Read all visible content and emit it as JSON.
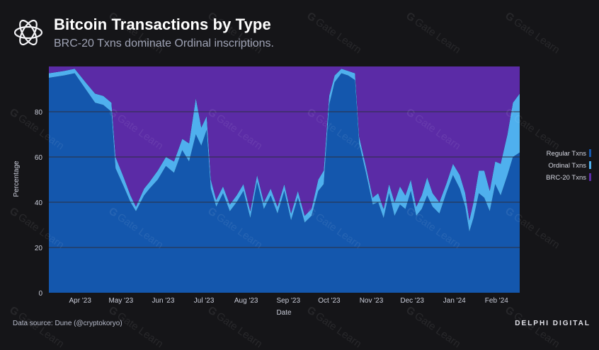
{
  "header": {
    "title": "Bitcoin Transactions by Type",
    "subtitle": "BRC-20 Txns dominate Ordinal inscriptions."
  },
  "footer": {
    "source": "Data source: Dune (@cryptokoryo)",
    "brand": "DELPHI DIGITAL"
  },
  "watermark": {
    "text": "Gate Learn"
  },
  "colors": {
    "background": "#151518",
    "regular": "#1457ad",
    "ordinal": "#4fb0ee",
    "brc20": "#5b2ba6",
    "grid": "#2b2f40"
  },
  "chart_data": {
    "type": "area",
    "stacked": true,
    "xlabel": "Date",
    "ylabel": "Percentage",
    "ylim": [
      0,
      100
    ],
    "yticks": [
      0,
      20,
      40,
      60,
      80
    ],
    "xlim": [
      "2023-03-09",
      "2024-02-18"
    ],
    "xticks": [
      {
        "date": "2023-04-01",
        "label": "Apr '23"
      },
      {
        "date": "2023-05-01",
        "label": "May '23"
      },
      {
        "date": "2023-06-01",
        "label": "Jun '23"
      },
      {
        "date": "2023-07-01",
        "label": "Jul '23"
      },
      {
        "date": "2023-08-01",
        "label": "Aug '23"
      },
      {
        "date": "2023-09-01",
        "label": "Sep '23"
      },
      {
        "date": "2023-10-01",
        "label": "Oct '23"
      },
      {
        "date": "2023-11-01",
        "label": "Nov '23"
      },
      {
        "date": "2023-12-01",
        "label": "Dec '23"
      },
      {
        "date": "2024-01-01",
        "label": "Jan '24"
      },
      {
        "date": "2024-02-01",
        "label": "Feb '24"
      }
    ],
    "grid": true,
    "legend_position": "right",
    "series": [
      {
        "name": "Regular Txns",
        "color": "#1457ad",
        "points": [
          [
            "2023-03-09",
            95
          ],
          [
            "2023-03-20",
            96
          ],
          [
            "2023-03-28",
            97
          ],
          [
            "2023-04-05",
            90
          ],
          [
            "2023-04-12",
            84
          ],
          [
            "2023-04-18",
            83
          ],
          [
            "2023-04-24",
            80
          ],
          [
            "2023-04-27",
            55
          ],
          [
            "2023-05-03",
            47
          ],
          [
            "2023-05-08",
            40
          ],
          [
            "2023-05-12",
            36
          ],
          [
            "2023-05-18",
            43
          ],
          [
            "2023-05-22",
            46
          ],
          [
            "2023-05-28",
            50
          ],
          [
            "2023-06-03",
            56
          ],
          [
            "2023-06-09",
            53
          ],
          [
            "2023-06-15",
            63
          ],
          [
            "2023-06-20",
            58
          ],
          [
            "2023-06-25",
            70
          ],
          [
            "2023-06-29",
            65
          ],
          [
            "2023-07-03",
            72
          ],
          [
            "2023-07-06",
            46
          ],
          [
            "2023-07-10",
            38
          ],
          [
            "2023-07-15",
            44
          ],
          [
            "2023-07-20",
            36
          ],
          [
            "2023-07-25",
            40
          ],
          [
            "2023-07-30",
            45
          ],
          [
            "2023-08-04",
            33
          ],
          [
            "2023-08-09",
            49
          ],
          [
            "2023-08-14",
            37
          ],
          [
            "2023-08-19",
            43
          ],
          [
            "2023-08-24",
            35
          ],
          [
            "2023-08-29",
            45
          ],
          [
            "2023-09-03",
            32
          ],
          [
            "2023-09-08",
            42
          ],
          [
            "2023-09-13",
            31
          ],
          [
            "2023-09-18",
            34
          ],
          [
            "2023-09-23",
            45
          ],
          [
            "2023-09-27",
            48
          ],
          [
            "2023-10-01",
            83
          ],
          [
            "2023-10-05",
            93
          ],
          [
            "2023-10-10",
            97
          ],
          [
            "2023-10-15",
            96
          ],
          [
            "2023-10-20",
            94
          ],
          [
            "2023-10-23",
            66
          ],
          [
            "2023-10-28",
            53
          ],
          [
            "2023-11-02",
            39
          ],
          [
            "2023-11-06",
            40
          ],
          [
            "2023-11-10",
            33
          ],
          [
            "2023-11-14",
            44
          ],
          [
            "2023-11-18",
            34
          ],
          [
            "2023-11-22",
            39
          ],
          [
            "2023-11-26",
            37
          ],
          [
            "2023-11-30",
            45
          ],
          [
            "2023-12-04",
            34
          ],
          [
            "2023-12-08",
            37
          ],
          [
            "2023-12-12",
            43
          ],
          [
            "2023-12-16",
            38
          ],
          [
            "2023-12-21",
            35
          ],
          [
            "2023-12-26",
            44
          ],
          [
            "2023-12-31",
            52
          ],
          [
            "2024-01-05",
            46
          ],
          [
            "2024-01-09",
            38
          ],
          [
            "2024-01-12",
            27
          ],
          [
            "2024-01-15",
            33
          ],
          [
            "2024-01-19",
            44
          ],
          [
            "2024-01-23",
            42
          ],
          [
            "2024-01-27",
            36
          ],
          [
            "2024-01-31",
            48
          ],
          [
            "2024-02-04",
            43
          ],
          [
            "2024-02-09",
            52
          ],
          [
            "2024-02-13",
            60
          ],
          [
            "2024-02-18",
            62
          ]
        ]
      },
      {
        "name": "Ordinal Txns",
        "color": "#4fb0ee",
        "points": [
          [
            "2023-03-09",
            2
          ],
          [
            "2023-03-20",
            2
          ],
          [
            "2023-03-28",
            2
          ],
          [
            "2023-04-05",
            3
          ],
          [
            "2023-04-12",
            4
          ],
          [
            "2023-04-18",
            4
          ],
          [
            "2023-04-24",
            4
          ],
          [
            "2023-04-27",
            5
          ],
          [
            "2023-05-03",
            4
          ],
          [
            "2023-05-08",
            3
          ],
          [
            "2023-05-12",
            2
          ],
          [
            "2023-05-18",
            3
          ],
          [
            "2023-05-22",
            3
          ],
          [
            "2023-05-28",
            4
          ],
          [
            "2023-06-03",
            4
          ],
          [
            "2023-06-09",
            5
          ],
          [
            "2023-06-15",
            5
          ],
          [
            "2023-06-20",
            8
          ],
          [
            "2023-06-25",
            16
          ],
          [
            "2023-06-29",
            8
          ],
          [
            "2023-07-03",
            6
          ],
          [
            "2023-07-06",
            4
          ],
          [
            "2023-07-10",
            3
          ],
          [
            "2023-07-15",
            3
          ],
          [
            "2023-07-20",
            3
          ],
          [
            "2023-07-25",
            3
          ],
          [
            "2023-07-30",
            3
          ],
          [
            "2023-08-04",
            3
          ],
          [
            "2023-08-09",
            3
          ],
          [
            "2023-08-14",
            3
          ],
          [
            "2023-08-19",
            3
          ],
          [
            "2023-08-24",
            3
          ],
          [
            "2023-08-29",
            3
          ],
          [
            "2023-09-03",
            3
          ],
          [
            "2023-09-08",
            3
          ],
          [
            "2023-09-13",
            3
          ],
          [
            "2023-09-18",
            3
          ],
          [
            "2023-09-23",
            5
          ],
          [
            "2023-09-27",
            6
          ],
          [
            "2023-10-01",
            4
          ],
          [
            "2023-10-05",
            3
          ],
          [
            "2023-10-10",
            2
          ],
          [
            "2023-10-15",
            2
          ],
          [
            "2023-10-20",
            3
          ],
          [
            "2023-10-23",
            3
          ],
          [
            "2023-10-28",
            3
          ],
          [
            "2023-11-02",
            3
          ],
          [
            "2023-11-06",
            4
          ],
          [
            "2023-11-10",
            4
          ],
          [
            "2023-11-14",
            4
          ],
          [
            "2023-11-18",
            6
          ],
          [
            "2023-11-22",
            8
          ],
          [
            "2023-11-26",
            6
          ],
          [
            "2023-11-30",
            5
          ],
          [
            "2023-12-04",
            4
          ],
          [
            "2023-12-08",
            6
          ],
          [
            "2023-12-12",
            8
          ],
          [
            "2023-12-16",
            6
          ],
          [
            "2023-12-21",
            5
          ],
          [
            "2023-12-26",
            4
          ],
          [
            "2023-12-31",
            5
          ],
          [
            "2024-01-05",
            6
          ],
          [
            "2024-01-09",
            6
          ],
          [
            "2024-01-12",
            5
          ],
          [
            "2024-01-15",
            7
          ],
          [
            "2024-01-19",
            10
          ],
          [
            "2024-01-23",
            12
          ],
          [
            "2024-01-27",
            9
          ],
          [
            "2024-01-31",
            10
          ],
          [
            "2024-02-04",
            14
          ],
          [
            "2024-02-09",
            18
          ],
          [
            "2024-02-13",
            24
          ],
          [
            "2024-02-18",
            26
          ]
        ]
      },
      {
        "name": "BRC-20 Txns",
        "color": "#5b2ba6",
        "points": [
          [
            "2023-03-09",
            3
          ],
          [
            "2023-03-20",
            2
          ],
          [
            "2023-03-28",
            1
          ],
          [
            "2023-04-05",
            7
          ],
          [
            "2023-04-12",
            12
          ],
          [
            "2023-04-18",
            13
          ],
          [
            "2023-04-24",
            16
          ],
          [
            "2023-04-27",
            40
          ],
          [
            "2023-05-03",
            49
          ],
          [
            "2023-05-08",
            57
          ],
          [
            "2023-05-12",
            62
          ],
          [
            "2023-05-18",
            54
          ],
          [
            "2023-05-22",
            51
          ],
          [
            "2023-05-28",
            46
          ],
          [
            "2023-06-03",
            40
          ],
          [
            "2023-06-09",
            42
          ],
          [
            "2023-06-15",
            32
          ],
          [
            "2023-06-20",
            34
          ],
          [
            "2023-06-25",
            14
          ],
          [
            "2023-06-29",
            27
          ],
          [
            "2023-07-03",
            22
          ],
          [
            "2023-07-06",
            50
          ],
          [
            "2023-07-10",
            59
          ],
          [
            "2023-07-15",
            53
          ],
          [
            "2023-07-20",
            61
          ],
          [
            "2023-07-25",
            57
          ],
          [
            "2023-07-30",
            52
          ],
          [
            "2023-08-04",
            64
          ],
          [
            "2023-08-09",
            48
          ],
          [
            "2023-08-14",
            60
          ],
          [
            "2023-08-19",
            54
          ],
          [
            "2023-08-24",
            62
          ],
          [
            "2023-08-29",
            52
          ],
          [
            "2023-09-03",
            65
          ],
          [
            "2023-09-08",
            55
          ],
          [
            "2023-09-13",
            66
          ],
          [
            "2023-09-18",
            63
          ],
          [
            "2023-09-23",
            50
          ],
          [
            "2023-09-27",
            46
          ],
          [
            "2023-10-01",
            13
          ],
          [
            "2023-10-05",
            4
          ],
          [
            "2023-10-10",
            1
          ],
          [
            "2023-10-15",
            2
          ],
          [
            "2023-10-20",
            3
          ],
          [
            "2023-10-23",
            31
          ],
          [
            "2023-10-28",
            44
          ],
          [
            "2023-11-02",
            58
          ],
          [
            "2023-11-06",
            56
          ],
          [
            "2023-11-10",
            63
          ],
          [
            "2023-11-14",
            52
          ],
          [
            "2023-11-18",
            60
          ],
          [
            "2023-11-22",
            53
          ],
          [
            "2023-11-26",
            57
          ],
          [
            "2023-11-30",
            50
          ],
          [
            "2023-12-04",
            62
          ],
          [
            "2023-12-08",
            57
          ],
          [
            "2023-12-12",
            49
          ],
          [
            "2023-12-16",
            56
          ],
          [
            "2023-12-21",
            60
          ],
          [
            "2023-12-26",
            52
          ],
          [
            "2023-12-31",
            43
          ],
          [
            "2024-01-05",
            48
          ],
          [
            "2024-01-09",
            56
          ],
          [
            "2024-01-12",
            68
          ],
          [
            "2024-01-15",
            60
          ],
          [
            "2024-01-19",
            46
          ],
          [
            "2024-01-23",
            46
          ],
          [
            "2024-01-27",
            55
          ],
          [
            "2024-01-31",
            42
          ],
          [
            "2024-02-04",
            43
          ],
          [
            "2024-02-09",
            30
          ],
          [
            "2024-02-13",
            16
          ],
          [
            "2024-02-18",
            12
          ]
        ]
      }
    ]
  }
}
